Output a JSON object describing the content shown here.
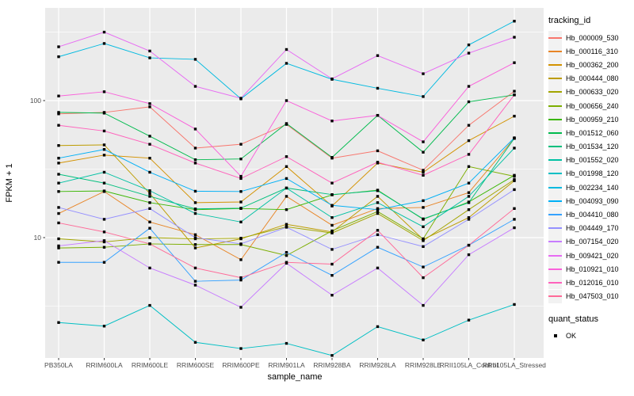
{
  "chart_data": {
    "type": "line",
    "title": "",
    "xlabel": "sample_name",
    "ylabel": "FPKM + 1",
    "y_scale": "log10",
    "ylim": [
      1.3,
      480
    ],
    "y_ticks": [
      10,
      100
    ],
    "y_tick_labels": [
      "10",
      "100"
    ],
    "y_minor_gridlines": [
      3.16,
      31.6,
      316
    ],
    "grid": "on",
    "legend_position": "right",
    "legend_title": "tracking_id",
    "panel_background": "#EBEBEB",
    "gridline_color": "#FFFFFF",
    "marker": "square",
    "marker_color": "#000000",
    "categories": [
      "PB350LA",
      "RRIM600LA",
      "RRIM600LE",
      "RRIM600SE",
      "RRIM600PE",
      "RRIM901LA",
      "RRIM928BA",
      "RRIM928LA",
      "RRIM928LE",
      "RRII105LA_Control",
      "RRII105LA_Stressed"
    ],
    "series": [
      {
        "name": "Hb_000009_530",
        "color": "#F8766D",
        "values": [
          80,
          82,
          90,
          45,
          48,
          67,
          38,
          43,
          31,
          66,
          117
        ]
      },
      {
        "name": "Hb_000116_310",
        "color": "#E88526",
        "values": [
          15,
          21.7,
          13,
          10.5,
          6.9,
          20,
          12.3,
          16.3,
          16.6,
          21.3,
          53
        ]
      },
      {
        "name": "Hb_000362_200",
        "color": "#D39200",
        "values": [
          35,
          40,
          38,
          18,
          18.2,
          33,
          17,
          35,
          30,
          51,
          77
        ]
      },
      {
        "name": "Hb_000444_080",
        "color": "#BD9C00",
        "values": [
          47,
          47.5,
          21,
          8.4,
          9.8,
          12.5,
          11,
          20,
          9.7,
          14,
          26
        ]
      },
      {
        "name": "Hb_000633_020",
        "color": "#A3A500",
        "values": [
          9.8,
          9.3,
          10,
          9.8,
          9.9,
          12,
          10.8,
          15,
          9.5,
          16,
          26.5
        ]
      },
      {
        "name": "Hb_000656_240",
        "color": "#7CAE00",
        "values": [
          8.4,
          8.5,
          9,
          8.9,
          8.9,
          7.4,
          11.2,
          15.5,
          9.8,
          33,
          28
        ]
      },
      {
        "name": "Hb_000959_210",
        "color": "#39B600",
        "values": [
          21.7,
          21.9,
          18,
          16,
          16.3,
          16,
          20.5,
          22.2,
          13.6,
          18.2,
          28.5
        ]
      },
      {
        "name": "Hb_001512_060",
        "color": "#00BB4E",
        "values": [
          82,
          81,
          55,
          37,
          37.5,
          68,
          38.5,
          78,
          42,
          98,
          110
        ]
      },
      {
        "name": "Hb_001534_120",
        "color": "#00BF7D",
        "values": [
          29,
          25,
          20,
          16.2,
          16.4,
          23,
          20.6,
          22,
          13.7,
          18,
          53
        ]
      },
      {
        "name": "Hb_001552_020",
        "color": "#00C1A3",
        "values": [
          25,
          30,
          22,
          15,
          13,
          23,
          14,
          18,
          12,
          20,
          45
        ]
      },
      {
        "name": "Hb_001998_120",
        "color": "#00BFC4",
        "values": [
          2.4,
          2.26,
          3.2,
          1.72,
          1.55,
          1.69,
          1.38,
          2.24,
          1.79,
          2.5,
          3.25
        ]
      },
      {
        "name": "Hb_002234_140",
        "color": "#00BAE0",
        "values": [
          209,
          261,
          205,
          200,
          103,
          187,
          143,
          123,
          107,
          255,
          380
        ]
      },
      {
        "name": "Hb_004093_090",
        "color": "#00B0F6",
        "values": [
          38,
          44,
          30,
          21.8,
          21.7,
          27,
          17.2,
          16,
          18.6,
          25,
          53.5
        ]
      },
      {
        "name": "Hb_004410_080",
        "color": "#35A2FF",
        "values": [
          6.6,
          6.6,
          11.7,
          4.8,
          4.9,
          7.8,
          5.3,
          8.5,
          6.1,
          8.8,
          13.6
        ]
      },
      {
        "name": "Hb_004449_170",
        "color": "#9590FF",
        "values": [
          16.6,
          13.6,
          16.3,
          10,
          9,
          11.9,
          8.2,
          10.5,
          8.6,
          13.6,
          22.4
        ]
      },
      {
        "name": "Hb_007154_020",
        "color": "#C77CFF",
        "values": [
          8.7,
          9.5,
          6,
          4.5,
          3.1,
          6.5,
          3.8,
          6,
          3.2,
          7.5,
          11.8
        ]
      },
      {
        "name": "Hb_009421_020",
        "color": "#E76BF3",
        "values": [
          247,
          316,
          230,
          127,
          104,
          236,
          144,
          213,
          157,
          222,
          290
        ]
      },
      {
        "name": "Hb_010921_010",
        "color": "#FA62DB",
        "values": [
          108,
          116,
          95,
          62,
          28,
          100,
          71,
          78,
          50,
          127,
          189
        ]
      },
      {
        "name": "Hb_012016_010",
        "color": "#FF62BC",
        "values": [
          66,
          60,
          48,
          35,
          27,
          39,
          25,
          35.5,
          28.5,
          40.5,
          110
        ]
      },
      {
        "name": "Hb_047503_010",
        "color": "#FF6A98",
        "values": [
          12.8,
          11,
          9,
          6,
          5.1,
          6.6,
          6.4,
          11.3,
          5.1,
          8.8,
          16.3
        ]
      }
    ],
    "quant_legend": {
      "title": "quant_status",
      "items": [
        {
          "label": "OK",
          "marker": "black-square",
          "color": "#000000"
        }
      ]
    }
  }
}
